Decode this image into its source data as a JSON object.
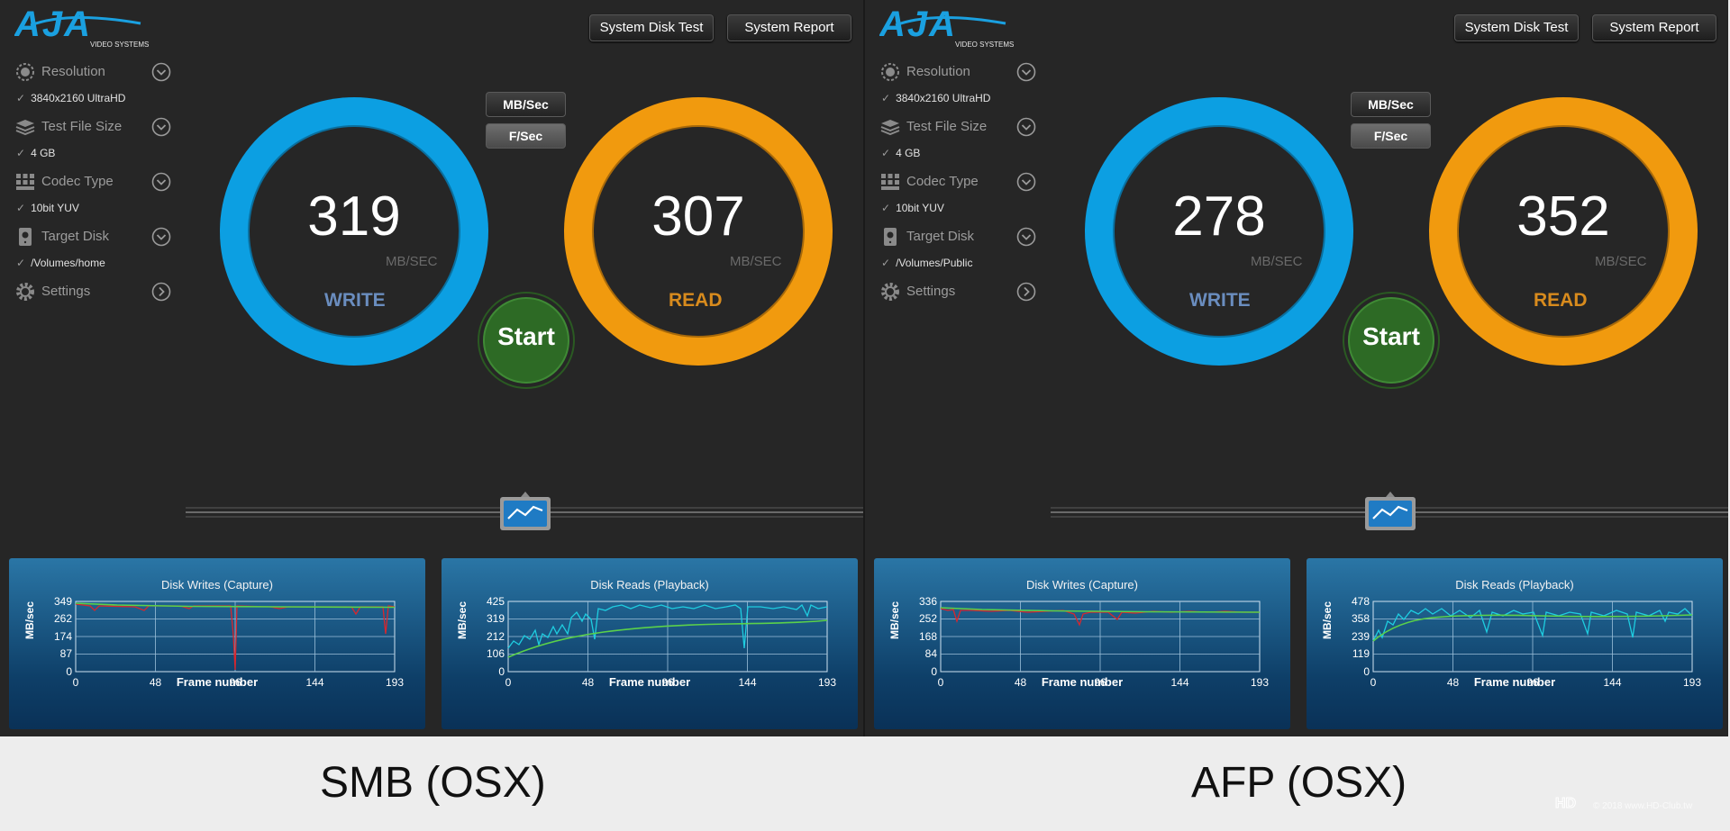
{
  "colors": {
    "write_ring": "#0c9fe2",
    "read_ring": "#f19a0e",
    "write_label": "#6a8dbf",
    "read_label": "#d88b1d",
    "start_button": "#2d6a25",
    "graph_bg": "#1b5c8c",
    "write_trace": "#d9262d",
    "read_trace": "#1ecde0",
    "average_line": "#5bd14a"
  },
  "panels": [
    {
      "logo": {
        "text": "AJA",
        "subtext": "VIDEO SYSTEMS"
      },
      "buttons": {
        "disk_test": "System Disk Test",
        "report": "System Report"
      },
      "units": {
        "mb": "MB/Sec",
        "f": "F/Sec"
      },
      "sidebar": [
        {
          "icon": "resolution-icon",
          "label": "Resolution",
          "value": "3840x2160 UltraHD"
        },
        {
          "icon": "file-size-icon",
          "label": "Test File Size",
          "value": "4 GB"
        },
        {
          "icon": "codec-icon",
          "label": "Codec Type",
          "value": "10bit YUV"
        },
        {
          "icon": "disk-icon",
          "label": "Target Disk",
          "value": "/Volumes/home"
        },
        {
          "icon": "gear-icon",
          "label": "Settings",
          "value": ""
        }
      ],
      "check": "✓",
      "write": {
        "value": "319",
        "unit": "MB/SEC",
        "label": "WRITE"
      },
      "read": {
        "value": "307",
        "unit": "MB/SEC",
        "label": "READ"
      },
      "start": "Start",
      "graphs": [
        {
          "title": "Disk Writes (Capture)",
          "xlabel": "Frame number",
          "ylabel": "MB/sec",
          "yticks": [
            "349",
            "262",
            "174",
            "87",
            "0"
          ],
          "xticks": [
            "0",
            "48",
            "96",
            "144",
            "193"
          ]
        },
        {
          "title": "Disk Reads (Playback)",
          "xlabel": "Frame number",
          "ylabel": "MB/sec",
          "yticks": [
            "425",
            "319",
            "212",
            "106",
            "0"
          ],
          "xticks": [
            "0",
            "48",
            "96",
            "144",
            "193"
          ]
        }
      ],
      "caption": "SMB (OSX)"
    },
    {
      "logo": {
        "text": "AJA",
        "subtext": "VIDEO SYSTEMS"
      },
      "buttons": {
        "disk_test": "System Disk Test",
        "report": "System Report"
      },
      "units": {
        "mb": "MB/Sec",
        "f": "F/Sec"
      },
      "sidebar": [
        {
          "icon": "resolution-icon",
          "label": "Resolution",
          "value": "3840x2160 UltraHD"
        },
        {
          "icon": "file-size-icon",
          "label": "Test File Size",
          "value": "4 GB"
        },
        {
          "icon": "codec-icon",
          "label": "Codec Type",
          "value": "10bit YUV"
        },
        {
          "icon": "disk-icon",
          "label": "Target Disk",
          "value": "/Volumes/Public"
        },
        {
          "icon": "gear-icon",
          "label": "Settings",
          "value": ""
        }
      ],
      "check": "✓",
      "write": {
        "value": "278",
        "unit": "MB/SEC",
        "label": "WRITE"
      },
      "read": {
        "value": "352",
        "unit": "MB/SEC",
        "label": "READ"
      },
      "start": "Start",
      "graphs": [
        {
          "title": "Disk Writes (Capture)",
          "xlabel": "Frame number",
          "ylabel": "MB/sec",
          "yticks": [
            "336",
            "252",
            "168",
            "84",
            "0"
          ],
          "xticks": [
            "0",
            "48",
            "96",
            "144",
            "193"
          ]
        },
        {
          "title": "Disk Reads (Playback)",
          "xlabel": "Frame number",
          "ylabel": "MB/sec",
          "yticks": [
            "478",
            "358",
            "239",
            "119",
            "0"
          ],
          "xticks": [
            "0",
            "48",
            "96",
            "144",
            "193"
          ]
        }
      ],
      "caption": "AFP (OSX)"
    }
  ],
  "watermark": "© 2018 www.HD-Club.tw"
}
